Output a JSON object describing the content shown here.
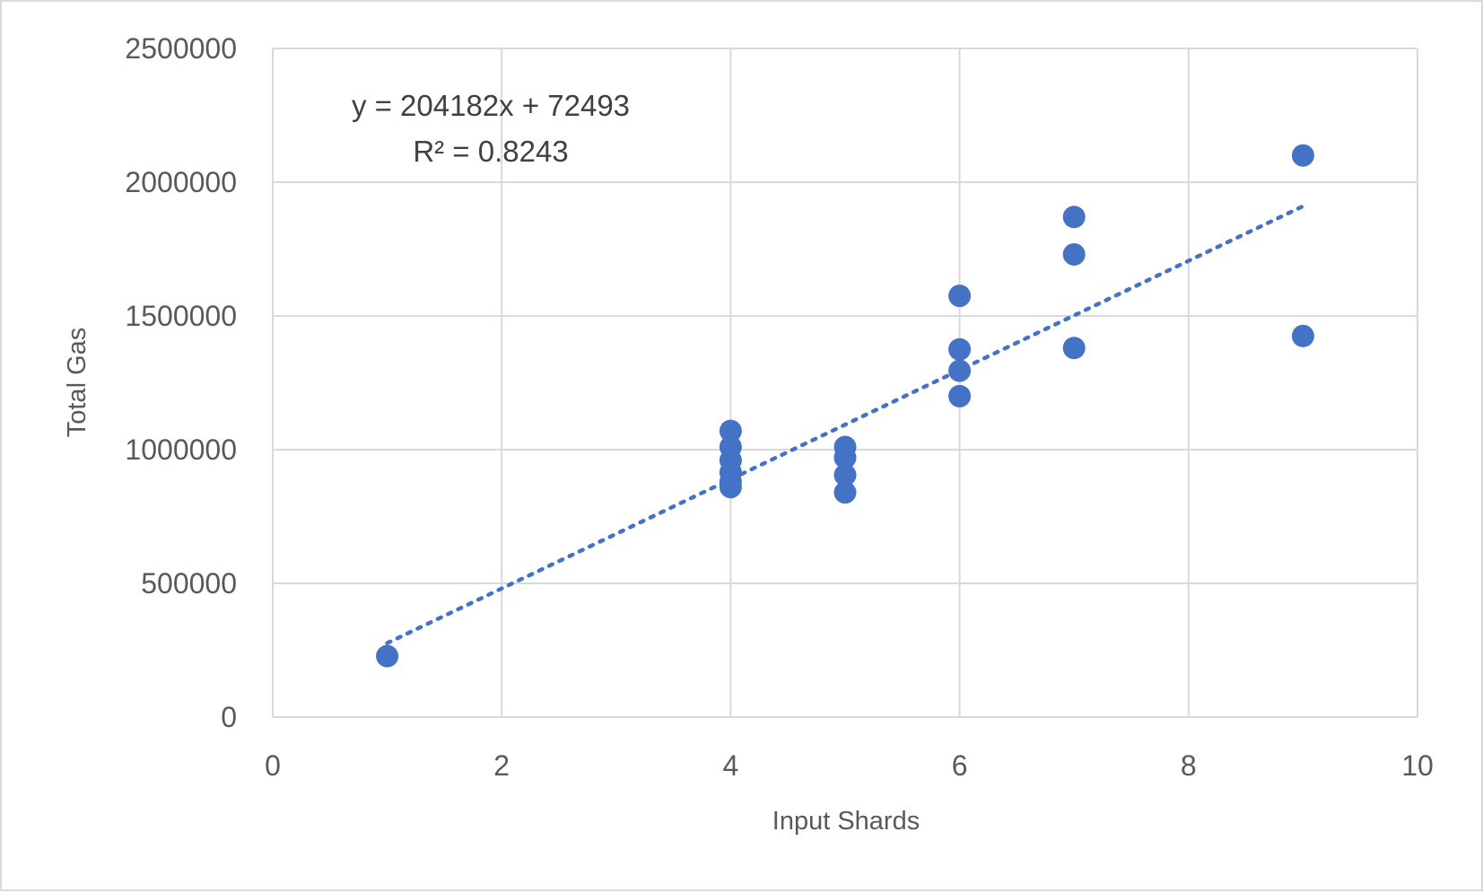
{
  "chart_data": {
    "type": "scatter",
    "title": "",
    "xlabel": "Input Shards",
    "ylabel": "Total Gas",
    "xlim": [
      0,
      10
    ],
    "ylim": [
      0,
      2500000
    ],
    "x_ticks": [
      0,
      2,
      4,
      6,
      8,
      10
    ],
    "y_ticks": [
      0,
      500000,
      1000000,
      1500000,
      2000000,
      2500000
    ],
    "x_tick_labels": [
      "0",
      "2",
      "4",
      "6",
      "8",
      "10"
    ],
    "y_tick_labels": [
      "0",
      "500000",
      "1000000",
      "1500000",
      "2000000",
      "2500000"
    ],
    "grid": true,
    "legend": "none",
    "marker_color": "#4472c4",
    "series": [
      {
        "points": [
          {
            "x": 1,
            "y": 228000
          },
          {
            "x": 4,
            "y": 1070000
          },
          {
            "x": 4,
            "y": 1010000
          },
          {
            "x": 4,
            "y": 960000
          },
          {
            "x": 4,
            "y": 915000
          },
          {
            "x": 4,
            "y": 880000
          },
          {
            "x": 4,
            "y": 860000
          },
          {
            "x": 5,
            "y": 1010000
          },
          {
            "x": 5,
            "y": 970000
          },
          {
            "x": 5,
            "y": 905000
          },
          {
            "x": 5,
            "y": 840000
          },
          {
            "x": 6,
            "y": 1575000
          },
          {
            "x": 6,
            "y": 1375000
          },
          {
            "x": 6,
            "y": 1295000
          },
          {
            "x": 6,
            "y": 1200000
          },
          {
            "x": 7,
            "y": 1870000
          },
          {
            "x": 7,
            "y": 1730000
          },
          {
            "x": 7,
            "y": 1380000
          },
          {
            "x": 9,
            "y": 2100000
          },
          {
            "x": 9,
            "y": 1425000
          }
        ]
      }
    ],
    "trendline": {
      "type": "linear",
      "style": "dotted",
      "slope": 204182,
      "intercept": 72493,
      "x_range": [
        1,
        9
      ]
    },
    "annotations": {
      "equation": "y = 204182x + 72493",
      "r_squared": "R² = 0.8243"
    }
  }
}
